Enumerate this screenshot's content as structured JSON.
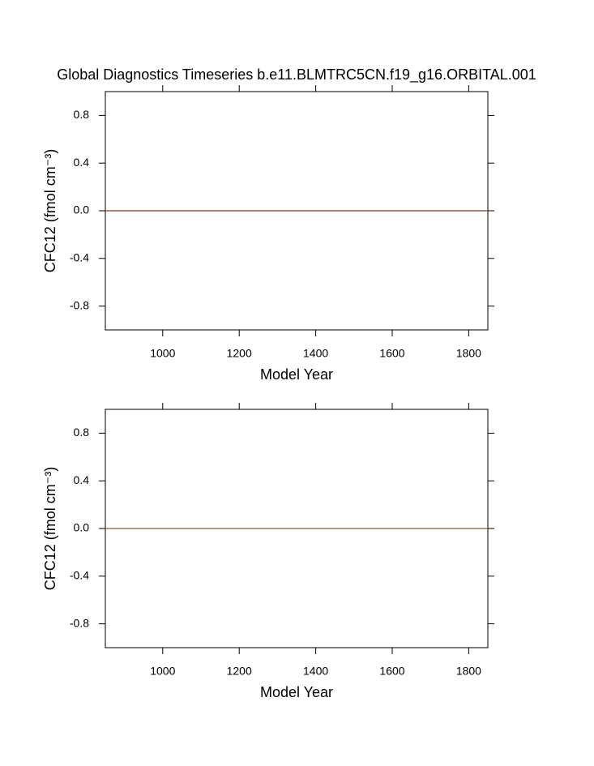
{
  "chart_data": [
    {
      "type": "line",
      "title": "Global Diagnostics Timeseries b.e11.BLMTRC5CN.f19_g16.ORBITAL.001",
      "xlabel": "Model Year",
      "ylabel": "CFC12 (fmol cm⁻³)",
      "x": [
        850,
        1850
      ],
      "series": [
        {
          "color": "#7a3b1e",
          "values": [
            0,
            0
          ]
        }
      ],
      "xlim": [
        850,
        1850
      ],
      "xticks": [
        1000,
        1200,
        1400,
        1600,
        1800
      ],
      "ylim": [
        -1,
        1
      ],
      "yticks": [
        -0.8,
        -0.4,
        {
          "value": 0,
          "label": "0.0"
        },
        0.4,
        0.8
      ]
    },
    {
      "type": "line",
      "xlabel": "Model Year",
      "ylabel": "CFC12 (fmol cm⁻³)",
      "x": [
        850,
        1850
      ],
      "series": [
        {
          "color": "#8b5a2b",
          "values": [
            0,
            0
          ]
        }
      ],
      "xlim": [
        850,
        1850
      ],
      "xticks": [
        1000,
        1200,
        1400,
        1600,
        1800
      ],
      "ylim": [
        -1,
        1
      ],
      "yticks": [
        -0.8,
        -0.4,
        {
          "value": 0,
          "label": "0.0"
        },
        0.4,
        0.8
      ]
    }
  ]
}
